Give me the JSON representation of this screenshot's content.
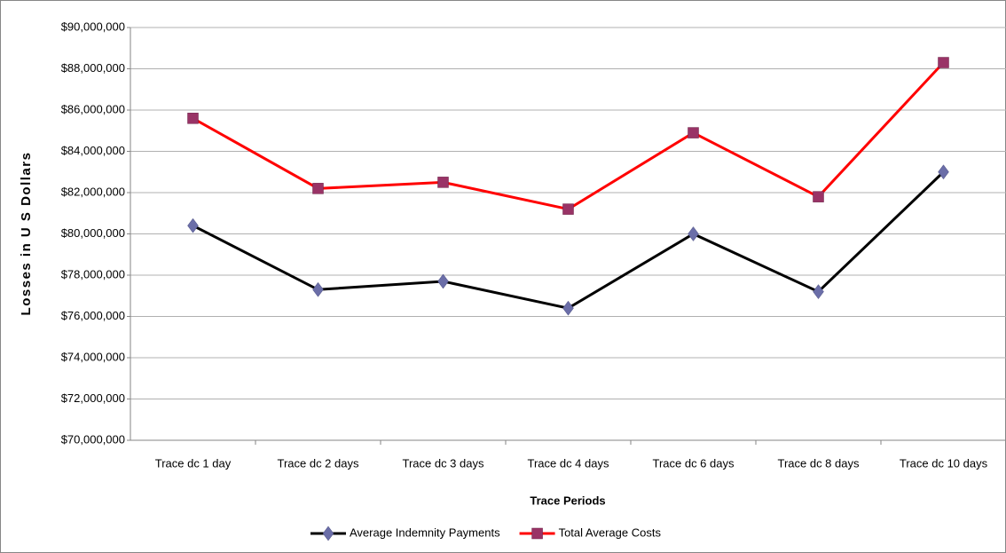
{
  "chart_data": {
    "type": "line",
    "y_label": "Losses in U S Dollars",
    "x_label": "Trace Periods",
    "categories": [
      "Trace dc 1 day",
      "Trace dc 2 days",
      "Trace dc 3 days",
      "Trace dc 4 days",
      "Trace dc 6 days",
      "Trace dc 8 days",
      "Trace dc 10 days"
    ],
    "series": [
      {
        "name": "Average Indemnity Payments",
        "color": "#000000",
        "marker": "diamond",
        "marker_color": "#6b6ea8",
        "values": [
          80400000,
          77300000,
          77700000,
          76400000,
          80000000,
          77200000,
          83000000
        ]
      },
      {
        "name": "Total Average Costs",
        "color": "#ff0000",
        "marker": "square",
        "marker_color": "#993366",
        "values": [
          85600000,
          82200000,
          82500000,
          81200000,
          84900000,
          81800000,
          88300000
        ]
      }
    ],
    "ylim": [
      70000000,
      90000000
    ],
    "yticks": [
      {
        "value": 70000000,
        "label": "$70,000,000"
      },
      {
        "value": 72000000,
        "label": "$72,000,000"
      },
      {
        "value": 74000000,
        "label": "$74,000,000"
      },
      {
        "value": 76000000,
        "label": "$76,000,000"
      },
      {
        "value": 78000000,
        "label": "$78,000,000"
      },
      {
        "value": 80000000,
        "label": "$80,000,000"
      },
      {
        "value": 82000000,
        "label": "$82,000,000"
      },
      {
        "value": 84000000,
        "label": "$84,000,000"
      },
      {
        "value": 86000000,
        "label": "$86,000,000"
      },
      {
        "value": 88000000,
        "label": "$88,000,000"
      },
      {
        "value": 90000000,
        "label": "$90,000,000"
      }
    ],
    "grid": true,
    "legend": "bottom"
  }
}
